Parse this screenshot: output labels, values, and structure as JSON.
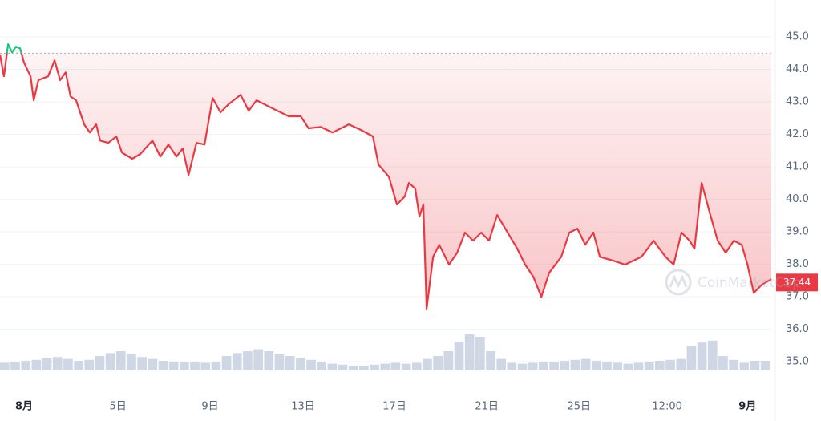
{
  "chart_data": {
    "type": "line",
    "x": [
      -1.04,
      -0.87,
      -0.69,
      -0.52,
      -0.35,
      -0.17,
      0,
      0.28,
      0.42,
      0.62,
      1.04,
      1.32,
      1.56,
      1.8,
      2.01,
      2.25,
      2.6,
      2.84,
      3.12,
      3.29,
      3.64,
      3.99,
      4.23,
      4.68,
      5.03,
      5.55,
      5.89,
      6.24,
      6.59,
      6.86,
      7.11,
      7.45,
      7.8,
      8.15,
      8.49,
      8.84,
      9.36,
      9.71,
      10.05,
      10.75,
      11.44,
      11.96,
      12.3,
      12.82,
      13.34,
      14.04,
      14.56,
      15.08,
      15.32,
      15.77,
      16.12,
      16.46,
      16.64,
      16.91,
      17.09,
      17.26,
      17.4,
      17.68,
      17.95,
      18.37,
      18.72,
      19.06,
      19.41,
      19.76,
      20.1,
      20.45,
      20.8,
      21.32,
      21.66,
      22.01,
      22.36,
      22.7,
      23.22,
      23.57,
      23.92,
      24.26,
      24.61,
      24.89,
      25.48,
      25.98,
      26.69,
      27.21,
      27.73,
      28.08,
      28.42,
      28.77,
      28.98,
      29.29,
      29.64,
      29.98,
      30.33,
      30.68,
      31.02,
      31.27,
      31.54,
      31.89,
      32.3
    ],
    "series": [
      {
        "name": "price",
        "color": "#ea3943",
        "up_color": "#16c784",
        "values": [
          44.46,
          43.79,
          44.78,
          44.53,
          44.7,
          44.65,
          44.21,
          43.79,
          43.05,
          43.67,
          43.79,
          44.28,
          43.67,
          43.91,
          43.17,
          43.05,
          42.31,
          42.06,
          42.31,
          41.81,
          41.74,
          41.94,
          41.44,
          41.25,
          41.4,
          41.81,
          41.32,
          41.69,
          41.32,
          41.57,
          40.75,
          41.74,
          41.69,
          43.12,
          42.68,
          42.93,
          43.22,
          42.73,
          43.05,
          42.8,
          42.56,
          42.56,
          42.19,
          42.23,
          42.06,
          42.31,
          42.14,
          41.94,
          41.07,
          40.7,
          39.84,
          40.09,
          40.51,
          40.33,
          39.47,
          39.84,
          36.63,
          38.23,
          38.6,
          37.99,
          38.36,
          38.98,
          38.73,
          38.98,
          38.73,
          39.52,
          39.1,
          38.48,
          37.99,
          37.62,
          37.0,
          37.74,
          38.23,
          38.98,
          39.1,
          38.6,
          38.98,
          38.23,
          38.11,
          37.99,
          38.23,
          38.73,
          38.23,
          37.99,
          38.98,
          38.73,
          38.48,
          40.51,
          39.59,
          38.73,
          38.36,
          38.73,
          38.6,
          37.99,
          37.12,
          37.37,
          37.54
        ]
      }
    ],
    "baseline": 44.5,
    "current_price": {
      "value": 37.44,
      "label": "37.44"
    },
    "xlim": [
      -1.04,
      32.3
    ],
    "ylim": [
      34.04,
      46.14
    ],
    "yticks": [
      {
        "value": 35,
        "label": "35.0"
      },
      {
        "value": 36,
        "label": "36.0"
      },
      {
        "value": 37,
        "label": "37.0"
      },
      {
        "value": 38,
        "label": "38.0"
      },
      {
        "value": 39,
        "label": "39.0"
      },
      {
        "value": 40,
        "label": "40.0"
      },
      {
        "value": 41,
        "label": "41.0"
      },
      {
        "value": 42,
        "label": "42.0"
      },
      {
        "value": 43,
        "label": "43.0"
      },
      {
        "value": 44,
        "label": "44.0"
      },
      {
        "value": 45,
        "label": "45.0"
      }
    ],
    "xticks": [
      {
        "value": 0,
        "label": "8月"
      },
      {
        "value": 4.06,
        "label": "5日"
      },
      {
        "value": 8.04,
        "label": "9日"
      },
      {
        "value": 12.06,
        "label": "13日"
      },
      {
        "value": 16.01,
        "label": "17日"
      },
      {
        "value": 20.0,
        "label": "21日"
      },
      {
        "value": 23.99,
        "label": "25日"
      },
      {
        "value": 27.8,
        "label": "12:00"
      },
      {
        "value": 31.27,
        "label": "9月"
      }
    ],
    "volume": {
      "color": "#cfd6e4",
      "ylim": [
        0,
        100
      ],
      "values": [
        16,
        18,
        20,
        22,
        26,
        28,
        24,
        20,
        22,
        30,
        36,
        40,
        34,
        28,
        24,
        20,
        18,
        17,
        17,
        16,
        18,
        30,
        36,
        40,
        44,
        40,
        34,
        30,
        26,
        22,
        18,
        14,
        12,
        10,
        10,
        12,
        14,
        16,
        14,
        16,
        24,
        30,
        40,
        60,
        75,
        70,
        40,
        24,
        16,
        14,
        16,
        18,
        18,
        20,
        22,
        24,
        20,
        18,
        16,
        14,
        16,
        18,
        20,
        22,
        24,
        50,
        58,
        62,
        30,
        22,
        16,
        20,
        20
      ]
    },
    "watermark": "CoinMarketCap",
    "grid": true
  }
}
